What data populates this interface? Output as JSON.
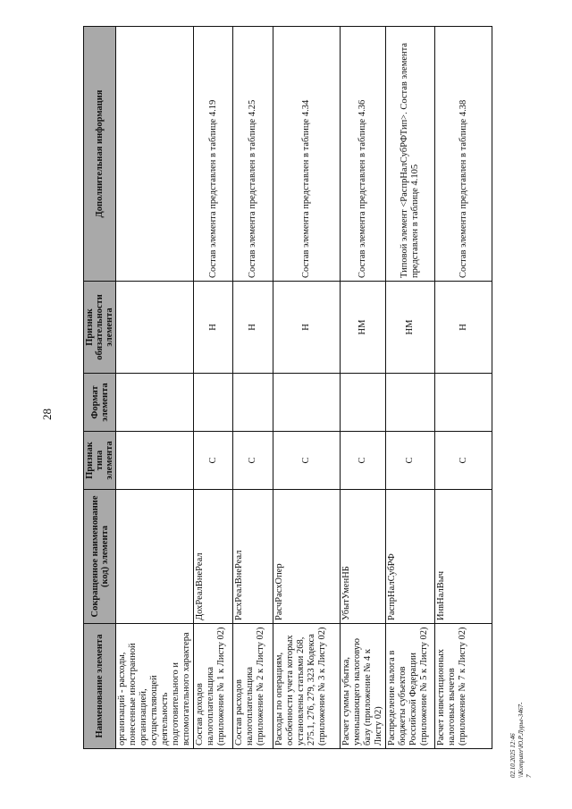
{
  "page_number": "28",
  "table": {
    "headers": [
      "Наименование элемента",
      "Сокращенное наименование (код) элемента",
      "Признак типа элемента",
      "Формат элемента",
      "Признак обязательности элемента",
      "Дополнительная информация"
    ],
    "rows": [
      [
        "организаций - расходы, понесенные иностранной организацией, осуществляющей деятельность подготовительного и вспомогательного характера",
        "",
        "",
        "",
        "",
        ""
      ],
      [
        "Состав доходов налогоплательщика (приложение № 1 к Листу 02)",
        "ДохРеалВнеРеал",
        "С",
        "",
        "Н",
        "Состав элемента представлен в таблице 4.19"
      ],
      [
        "Состав расходов налогоплательщика (приложение № 2 к Листу 02)",
        "РасхРеалВнеРеал",
        "С",
        "",
        "Н",
        "Состав элемента представлен в таблице 4.25"
      ],
      [
        "Расходы по операциям, особенности учета которых установлены статьями 268, 275.1, 276, 279, 323 Кодекса (приложение № 3 к Листу 02)",
        "РасчРасхОпер",
        "С",
        "",
        "Н",
        "Состав элемента представлен в таблице 4.34"
      ],
      [
        "Расчет суммы убытка, уменьшающего налоговую базу (приложение № 4 к Листу 02)",
        "УбытУменНБ",
        "С",
        "",
        "НМ",
        "Состав элемента представлен в таблице 4.36"
      ],
      [
        "Распределение налога в бюджеты субъектов Российской Федерации (приложение № 5 к Листу 02)",
        "РаспрНалСубРФ",
        "С",
        "",
        "НМ",
        "Типовой элемент <РаспрНалСубРФТип>. Состав элемента представлен в таблице 4.105"
      ],
      [
        "Расчет инвестиционных налоговых вычетов (приложение № 7 к Листу 02)",
        "ИнвНалВыч",
        "С",
        "",
        "Н",
        "Состав элемента представлен в таблице 4.38"
      ]
    ]
  },
  "footer": {
    "timestamp": "02.10.2025 12:46",
    "path": "\\\\Komputer\\Ю.Р.Лурье-3467-7"
  }
}
